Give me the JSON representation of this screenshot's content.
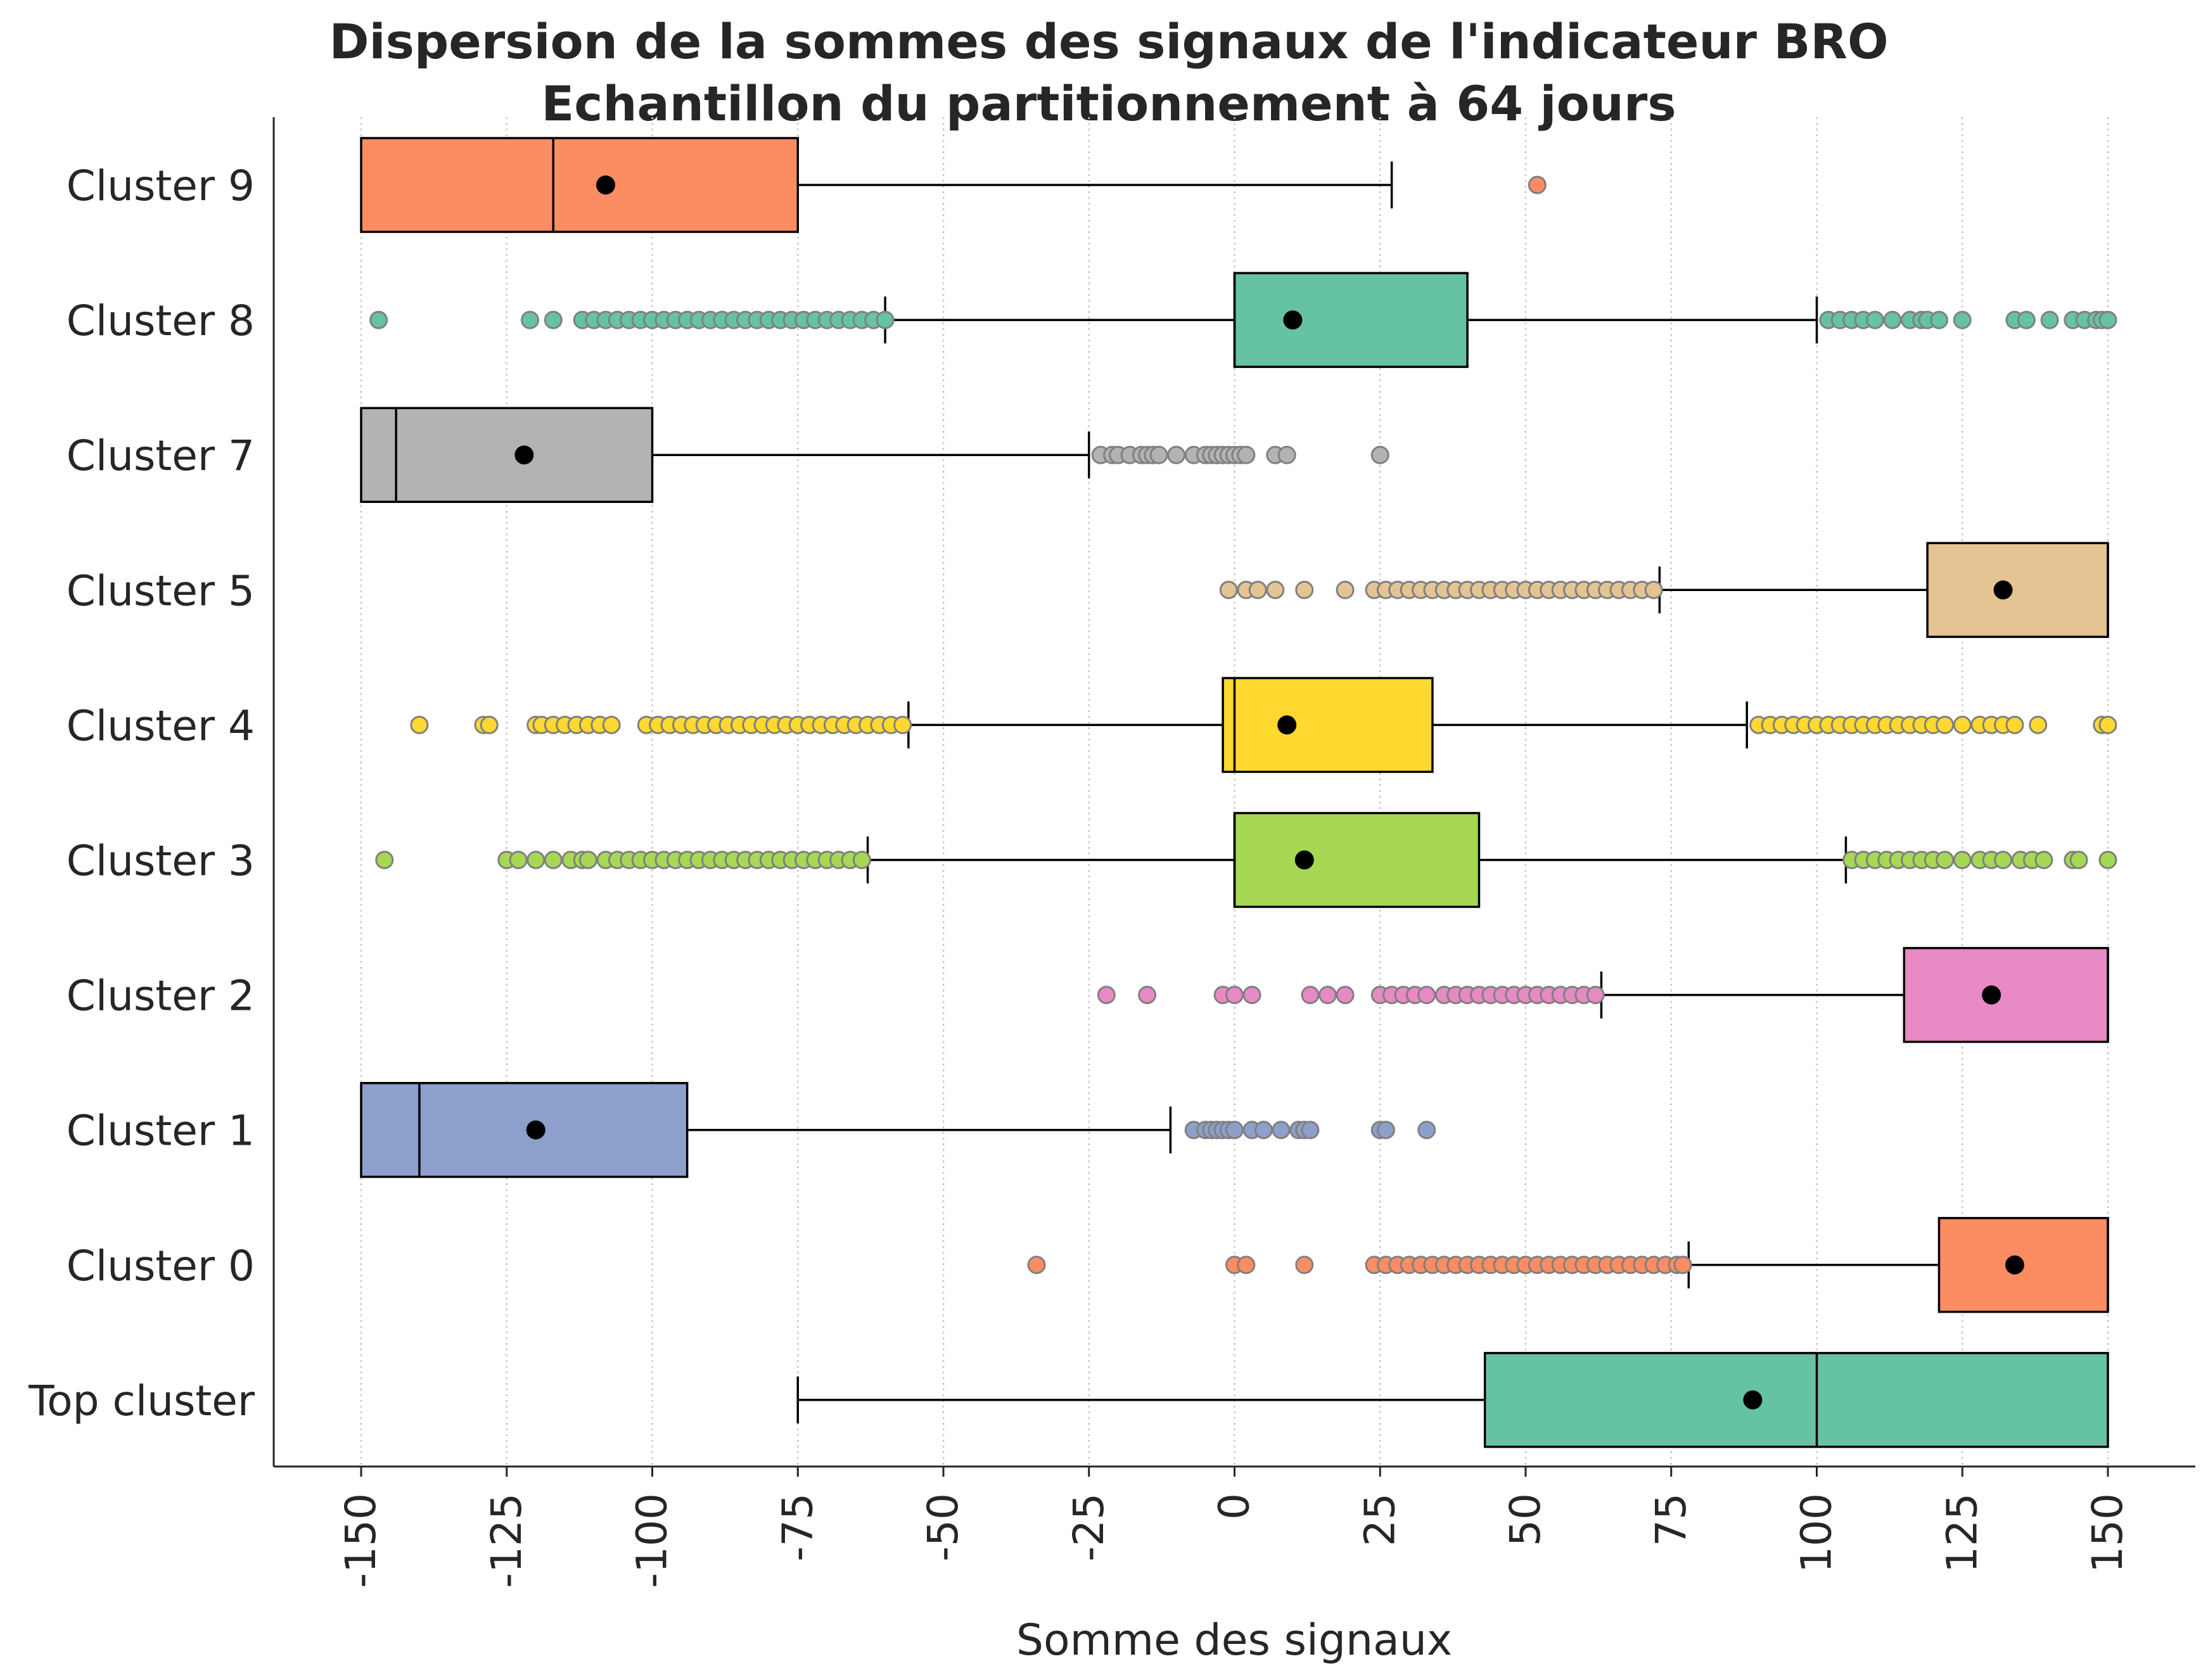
{
  "chart_data": {
    "type": "boxplot",
    "orientation": "horizontal",
    "title": "Dispersion de la sommes des signaux de l'indicateur BRO",
    "subtitle": "Echantillon du partitionnement à 64 jours",
    "xlabel": "Somme des signaux",
    "ylabel": "",
    "xlim": [
      -165,
      165
    ],
    "x_ticks": [
      -150,
      -125,
      -100,
      -75,
      -50,
      -25,
      0,
      25,
      50,
      75,
      100,
      125,
      150
    ],
    "x_tick_labels": [
      "-150",
      "-125",
      "-100",
      "-75",
      "-50",
      "-25",
      "0",
      "25",
      "50",
      "75",
      "100",
      "125",
      "150"
    ],
    "grid": "x dotted",
    "categories": [
      "Cluster 9",
      "Cluster 8",
      "Cluster 7",
      "Cluster 5",
      "Cluster 4",
      "Cluster 3",
      "Cluster 2",
      "Cluster 1",
      "Cluster 0",
      "Top cluster"
    ],
    "boxes": [
      {
        "label": "Cluster 9",
        "color": "#fc8d62",
        "whisker_low": -150,
        "q1": -150,
        "median": -117,
        "q3": -75,
        "whisker_high": 27,
        "mean": -108,
        "outliers": [
          52
        ]
      },
      {
        "label": "Cluster 8",
        "color": "#66c2a5",
        "whisker_low": -60,
        "q1": 0,
        "median": 0,
        "q3": 40,
        "whisker_high": 100,
        "mean": 10,
        "outliers": [
          -147,
          -121,
          -117,
          -112,
          -110,
          -108,
          -106,
          -104,
          -102,
          -100,
          -98,
          -96,
          -94,
          -92,
          -90,
          -88,
          -86,
          -84,
          -82,
          -80,
          -78,
          -76,
          -74,
          -72,
          -70,
          -68,
          -66,
          -64,
          -62,
          -60,
          102,
          104,
          106,
          108,
          110,
          113,
          116,
          118,
          119,
          121,
          125,
          134,
          136,
          140,
          144,
          146,
          148,
          149,
          150
        ]
      },
      {
        "label": "Cluster 7",
        "color": "#b3b3b3",
        "whisker_low": -150,
        "q1": -150,
        "median": -144,
        "q3": -100,
        "whisker_high": -25,
        "mean": -122,
        "outliers": [
          -23,
          -21,
          -20,
          -18,
          -16,
          -15,
          -14,
          -13,
          -10,
          -7,
          -5,
          -4,
          -3,
          -2,
          -1,
          0,
          1,
          2,
          7,
          9,
          25
        ]
      },
      {
        "label": "Cluster 5",
        "color": "#e5c494",
        "whisker_low": 73,
        "q1": 119,
        "median": 150,
        "q3": 150,
        "whisker_high": 150,
        "mean": 132,
        "outliers": [
          -1,
          2,
          4,
          7,
          12,
          19,
          24,
          26,
          28,
          30,
          32,
          34,
          36,
          38,
          40,
          42,
          44,
          46,
          48,
          50,
          52,
          54,
          56,
          58,
          60,
          62,
          64,
          66,
          68,
          70,
          72
        ]
      },
      {
        "label": "Cluster 4",
        "color": "#ffd92f",
        "whisker_low": -56,
        "q1": -2,
        "median": 0,
        "q3": 34,
        "whisker_high": 88,
        "mean": 9,
        "outliers": [
          -140,
          -129,
          -128,
          -120,
          -119,
          -117,
          -115,
          -113,
          -111,
          -109,
          -107,
          -101,
          -99,
          -97,
          -95,
          -93,
          -91,
          -89,
          -87,
          -85,
          -83,
          -81,
          -79,
          -77,
          -75,
          -73,
          -71,
          -69,
          -67,
          -65,
          -63,
          -61,
          -59,
          -57,
          90,
          92,
          94,
          96,
          98,
          100,
          102,
          104,
          106,
          108,
          110,
          112,
          114,
          116,
          118,
          120,
          122,
          125,
          128,
          130,
          132,
          134,
          138,
          149,
          150
        ]
      },
      {
        "label": "Cluster 3",
        "color": "#a6d854",
        "whisker_low": -63,
        "q1": 0,
        "median": 0,
        "q3": 42,
        "whisker_high": 105,
        "mean": 12,
        "outliers": [
          -146,
          -125,
          -123,
          -120,
          -117,
          -114,
          -112,
          -111,
          -108,
          -106,
          -104,
          -102,
          -100,
          -98,
          -96,
          -94,
          -92,
          -90,
          -88,
          -86,
          -84,
          -82,
          -80,
          -78,
          -76,
          -74,
          -72,
          -70,
          -68,
          -66,
          -64,
          106,
          108,
          110,
          112,
          114,
          116,
          118,
          120,
          122,
          125,
          128,
          130,
          132,
          135,
          137,
          139,
          144,
          145,
          150
        ]
      },
      {
        "label": "Cluster 2",
        "color": "#e78ac3",
        "whisker_low": 63,
        "q1": 115,
        "median": 150,
        "q3": 150,
        "whisker_high": 150,
        "mean": 130,
        "outliers": [
          -22,
          -15,
          -2,
          0,
          3,
          13,
          16,
          19,
          25,
          27,
          29,
          31,
          33,
          36,
          38,
          40,
          42,
          44,
          46,
          48,
          50,
          52,
          54,
          56,
          58,
          60,
          62
        ]
      },
      {
        "label": "Cluster 1",
        "color": "#8da0cb",
        "whisker_low": -150,
        "q1": -150,
        "median": -140,
        "q3": -94,
        "whisker_high": -11,
        "mean": -120,
        "outliers": [
          -7,
          -5,
          -4,
          -3,
          -2,
          -1,
          0,
          3,
          5,
          8,
          11,
          12,
          13,
          25,
          26,
          33
        ]
      },
      {
        "label": "Cluster 0",
        "color": "#fc8d62",
        "whisker_low": 78,
        "q1": 121,
        "median": 150,
        "q3": 150,
        "whisker_high": 150,
        "mean": 134,
        "outliers": [
          -34,
          0,
          2,
          12,
          24,
          26,
          28,
          30,
          32,
          34,
          36,
          38,
          40,
          42,
          44,
          46,
          48,
          50,
          52,
          54,
          56,
          58,
          60,
          62,
          64,
          66,
          68,
          70,
          72,
          74,
          76,
          77
        ]
      },
      {
        "label": "Top cluster",
        "color": "#66c2a5",
        "whisker_low": -75,
        "q1": 43,
        "median": 100,
        "q3": 150,
        "whisker_high": 150,
        "mean": 89,
        "outliers": []
      }
    ],
    "colors": {
      "text": "#262626",
      "mean_marker": "#000000",
      "outlier_edge": "#808080",
      "grid": "#c8c8c8"
    }
  }
}
